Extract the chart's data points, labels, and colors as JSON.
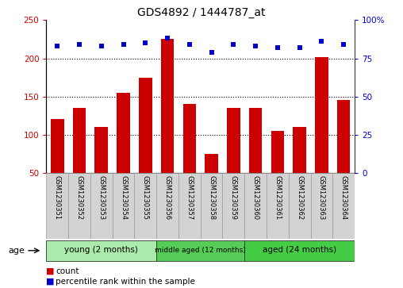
{
  "title": "GDS4892 / 1444787_at",
  "samples": [
    "GSM1230351",
    "GSM1230352",
    "GSM1230353",
    "GSM1230354",
    "GSM1230355",
    "GSM1230356",
    "GSM1230357",
    "GSM1230358",
    "GSM1230359",
    "GSM1230360",
    "GSM1230361",
    "GSM1230362",
    "GSM1230363",
    "GSM1230364"
  ],
  "counts": [
    120,
    135,
    110,
    155,
    175,
    225,
    140,
    75,
    135,
    135,
    105,
    110,
    202,
    145
  ],
  "percentiles": [
    83,
    84,
    83,
    84,
    85,
    88,
    84,
    79,
    84,
    83,
    82,
    82,
    86,
    84
  ],
  "groups": [
    {
      "label": "young (2 months)",
      "start": 0,
      "end": 5,
      "color": "#AAEAAA"
    },
    {
      "label": "middle aged (12 months)",
      "start": 5,
      "end": 9,
      "color": "#55CC55"
    },
    {
      "label": "aged (24 months)",
      "start": 9,
      "end": 14,
      "color": "#44CC44"
    }
  ],
  "bar_color": "#CC0000",
  "dot_color": "#0000CC",
  "ylim_left": [
    50,
    250
  ],
  "ylim_right": [
    0,
    100
  ],
  "yticks_left": [
    50,
    100,
    150,
    200,
    250
  ],
  "yticks_right": [
    0,
    25,
    50,
    75,
    100
  ],
  "grid_values": [
    100,
    150,
    200
  ],
  "cell_color": "#D3D3D3",
  "cell_edge_color": "#999999"
}
